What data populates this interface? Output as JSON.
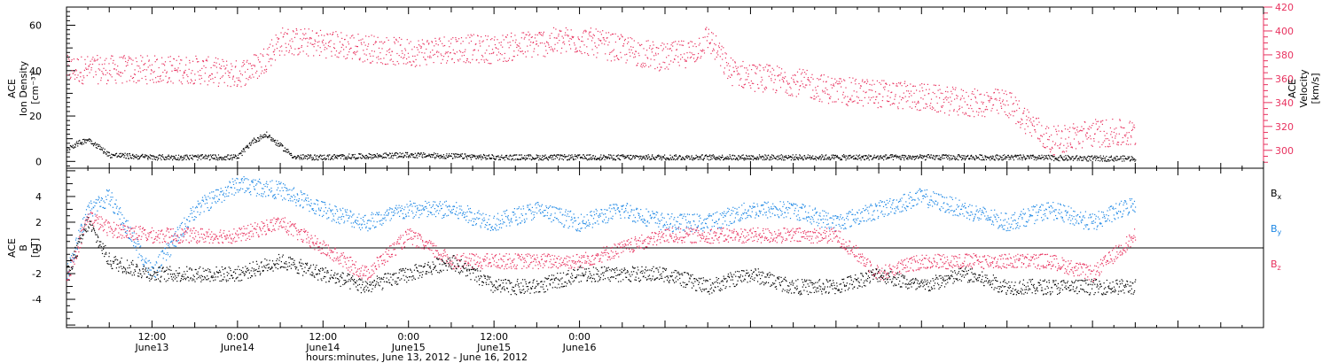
{
  "chart_data": [
    {
      "panel": "top",
      "type": "scatter",
      "ylabel_left": [
        "ACE",
        "Ion Density",
        "[cm⁻³]"
      ],
      "ylabel_right": [
        "ACE",
        "Velocity",
        "[km/s]"
      ],
      "ylim_left": [
        -3,
        68
      ],
      "ylim_right": [
        285,
        420
      ],
      "yticks_left": [
        0,
        20,
        40,
        60
      ],
      "yticks_right": [
        300,
        320,
        340,
        360,
        380,
        400,
        420
      ],
      "colors": {
        "density": "#000000",
        "velocity": "#e8325f"
      },
      "series": [
        {
          "axis": "left",
          "color": "#000000",
          "x": [
            0,
            3,
            6,
            12,
            18,
            24,
            26,
            28,
            32,
            36,
            48,
            60,
            66,
            72,
            84,
            96,
            108,
            120,
            132,
            144,
            150
          ],
          "values": [
            6,
            10,
            3,
            2,
            2,
            2,
            9,
            12,
            2,
            2,
            3,
            2,
            2,
            2,
            2,
            2,
            2,
            2,
            2,
            1.5,
            1.5
          ]
        },
        {
          "axis": "right",
          "color": "#e8325f",
          "x": [
            0,
            6,
            12,
            18,
            24,
            27,
            30,
            36,
            42,
            48,
            54,
            60,
            66,
            72,
            78,
            84,
            88,
            90,
            93,
            96,
            102,
            108,
            114,
            120,
            126,
            132,
            138,
            144,
            150
          ],
          "values": [
            368,
            368,
            368,
            368,
            364,
            372,
            392,
            390,
            386,
            382,
            386,
            385,
            390,
            393,
            385,
            378,
            383,
            395,
            367,
            362,
            358,
            350,
            348,
            345,
            340,
            340,
            308,
            315,
            314
          ]
        }
      ]
    },
    {
      "panel": "bottom",
      "type": "scatter",
      "ylabel": [
        "ACE",
        "B",
        "[nT]"
      ],
      "ylim": [
        -6.2,
        6.2
      ],
      "yticks": [
        -4,
        -2,
        0,
        2,
        4
      ],
      "legend": [
        "Bx",
        "By",
        "Bz"
      ],
      "series": [
        {
          "name": "Bx",
          "color": "#000000",
          "x": [
            0,
            3,
            6,
            12,
            18,
            24,
            30,
            36,
            42,
            48,
            54,
            60,
            66,
            72,
            78,
            84,
            90,
            96,
            102,
            108,
            114,
            120,
            126,
            132,
            138,
            144,
            150
          ],
          "values": [
            -2,
            2,
            -1,
            -2,
            -2,
            -2,
            -1,
            -2,
            -3,
            -2,
            -1,
            -3,
            -3,
            -2,
            -2,
            -2,
            -3,
            -2,
            -3,
            -3,
            -2,
            -3,
            -2,
            -3,
            -3,
            -3,
            -3
          ]
        },
        {
          "name": "By",
          "color": "#1e88e5",
          "x": [
            0,
            3,
            6,
            12,
            18,
            24,
            30,
            36,
            42,
            48,
            54,
            60,
            66,
            72,
            78,
            84,
            90,
            96,
            102,
            108,
            114,
            120,
            126,
            132,
            138,
            144,
            150
          ],
          "values": [
            -2,
            3,
            4,
            -2,
            3,
            5,
            4.5,
            3,
            2,
            3,
            3,
            2,
            3,
            2,
            3,
            2,
            2,
            3,
            3,
            2,
            3,
            4,
            3,
            2,
            3,
            2,
            3.5
          ]
        },
        {
          "name": "Bz",
          "color": "#e8325f",
          "x": [
            0,
            3,
            6,
            12,
            18,
            24,
            30,
            36,
            42,
            48,
            54,
            60,
            66,
            72,
            78,
            84,
            90,
            96,
            102,
            108,
            114,
            120,
            126,
            132,
            138,
            144,
            150
          ],
          "values": [
            -2.4,
            2.5,
            1.5,
            1,
            1,
            1,
            2,
            0,
            -2,
            1,
            -1,
            -1,
            -1,
            -1,
            0,
            1,
            1,
            1,
            1,
            1,
            -2,
            -1,
            -1,
            -1,
            -1,
            -2,
            1
          ]
        }
      ]
    }
  ],
  "time_axis": {
    "xlim": [
      0,
      168
    ],
    "major_ticks": [
      {
        "x": 12,
        "time": "12:00",
        "date": "June13"
      },
      {
        "x": 24,
        "time": "0:00",
        "date": "June14"
      },
      {
        "x": 36,
        "time": "12:00",
        "date": "June14"
      },
      {
        "x": 48,
        "time": "0:00",
        "date": "June15"
      },
      {
        "x": 60,
        "time": "12:00",
        "date": "June15"
      },
      {
        "x": 72,
        "time": "0:00",
        "date": "June16"
      }
    ],
    "xlabel": "hours:minutes, June 13, 2012 - June 16, 2012"
  }
}
